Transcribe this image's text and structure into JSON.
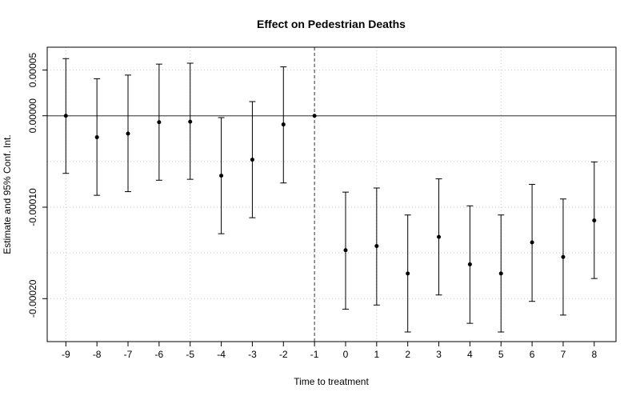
{
  "chart_data": {
    "type": "scatter",
    "title": "Effect on Pedestrian Deaths",
    "xlabel": "Time to treatment",
    "ylabel": "Estimate and 95% Conf. Int.",
    "x": [
      -9,
      -8,
      -7,
      -6,
      -5,
      -4,
      -3,
      -2,
      -1,
      0,
      1,
      2,
      3,
      4,
      5,
      6,
      7,
      8
    ],
    "estimate": [
      0.0,
      -2.35e-05,
      -1.95e-05,
      -7e-06,
      -6.5e-06,
      -6.55e-05,
      -4.8e-05,
      -9.5e-06,
      0.0,
      -0.000147,
      -0.0001425,
      -0.0001725,
      -0.0001325,
      -0.0001625,
      -0.0001725,
      -0.0001385,
      -0.0001545,
      -0.0001145
    ],
    "ci_lower": [
      -6.3e-05,
      -8.7e-05,
      -8.3e-05,
      -7.05e-05,
      -6.95e-05,
      -0.000129,
      -0.0001115,
      -7.35e-05,
      0.0,
      -0.0002115,
      -0.000207,
      -0.0002365,
      -0.000196,
      -0.000227,
      -0.0002365,
      -0.000203,
      -0.000218,
      -0.000178
    ],
    "ci_upper": [
      6.25e-05,
      4.05e-05,
      4.45e-05,
      5.65e-05,
      5.75e-05,
      -2e-06,
      1.55e-05,
      5.35e-05,
      0.0,
      -8.35e-05,
      -7.9e-05,
      -0.0001085,
      -6.9e-05,
      -9.85e-05,
      -0.0001085,
      -7.5e-05,
      -9.1e-05,
      -5.05e-05
    ],
    "xticks": [
      "-9",
      "-8",
      "-7",
      "-6",
      "-5",
      "-4",
      "-3",
      "-2",
      "-1",
      "0",
      "1",
      "2",
      "3",
      "4",
      "5",
      "6",
      "7",
      "8"
    ],
    "yticks": [
      {
        "value": 5e-05,
        "label": "0.00005"
      },
      {
        "value": 0.0,
        "label": "0.00000"
      },
      {
        "value": -0.0001,
        "label": "-0.00010"
      },
      {
        "value": -0.0002,
        "label": "-0.00020"
      }
    ],
    "grid_x": [
      -9,
      -5,
      -1,
      1,
      5
    ],
    "grid_y": [
      5e-05,
      0.0,
      -5e-05,
      -0.0001,
      -0.00015,
      -0.0002
    ],
    "xlim": [
      -9.6,
      8.7
    ],
    "ylim": [
      -0.000247,
      7.5e-05
    ],
    "reference_hline": 0.0,
    "reference_vline": -1,
    "grid": true
  }
}
